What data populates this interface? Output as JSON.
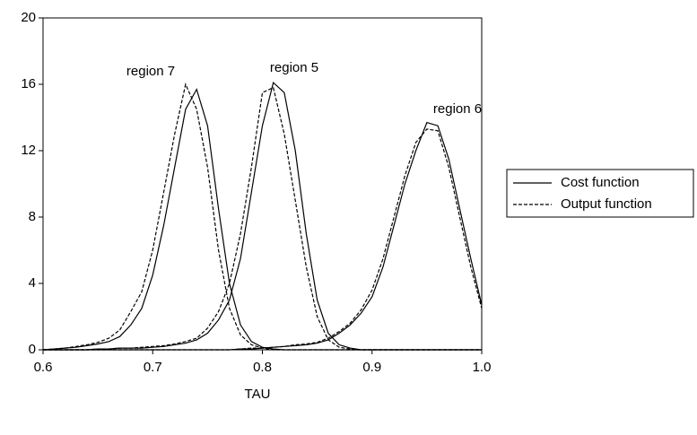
{
  "chart_data": {
    "type": "line",
    "x_label": "TAU",
    "x": [
      0.6,
      0.61,
      0.62,
      0.63,
      0.64,
      0.65,
      0.66,
      0.67,
      0.68,
      0.69,
      0.7,
      0.71,
      0.72,
      0.73,
      0.74,
      0.75,
      0.76,
      0.77,
      0.78,
      0.79,
      0.8,
      0.81,
      0.82,
      0.83,
      0.84,
      0.85,
      0.86,
      0.87,
      0.88,
      0.89,
      0.9,
      0.91,
      0.92,
      0.93,
      0.94,
      0.95,
      0.96,
      0.97,
      0.98,
      0.99,
      1.0
    ],
    "series": [
      {
        "name": "Cost function",
        "color": "#000000",
        "dashed": false,
        "curves": [
          [
            0,
            0.05,
            0.1,
            0.15,
            0.25,
            0.35,
            0.5,
            0.8,
            1.5,
            2.5,
            4.5,
            7.5,
            11,
            14.5,
            15.7,
            13.5,
            8.5,
            4,
            1.5,
            0.5,
            0.15,
            0.05,
            0,
            0,
            0,
            0,
            0,
            0,
            0,
            0,
            0,
            0,
            0,
            0,
            0,
            0,
            0,
            0,
            0,
            0,
            0
          ],
          [
            0,
            0,
            0,
            0,
            0,
            0.05,
            0.05,
            0.1,
            0.1,
            0.1,
            0.15,
            0.2,
            0.3,
            0.4,
            0.6,
            1,
            1.8,
            3,
            5.5,
            9.5,
            13.5,
            16.1,
            15.5,
            12,
            7,
            3,
            1,
            0.3,
            0.1,
            0,
            0,
            0,
            0,
            0,
            0,
            0,
            0,
            0,
            0,
            0,
            0
          ],
          [
            0,
            0,
            0,
            0,
            0,
            0,
            0,
            0,
            0,
            0,
            0,
            0,
            0,
            0,
            0,
            0,
            0,
            0,
            0.05,
            0.05,
            0.1,
            0.15,
            0.2,
            0.25,
            0.3,
            0.4,
            0.6,
            1,
            1.5,
            2.2,
            3.2,
            5,
            7.5,
            10,
            12,
            13.7,
            13.5,
            11.5,
            8.5,
            5.5,
            2.7
          ]
        ]
      },
      {
        "name": "Output function",
        "color": "#000000",
        "dashed": true,
        "curves": [
          [
            0,
            0.05,
            0.1,
            0.2,
            0.3,
            0.45,
            0.7,
            1.2,
            2.3,
            3.5,
            6,
            9.5,
            13,
            16,
            14.5,
            11,
            6,
            2.5,
            0.9,
            0.3,
            0.1,
            0,
            0,
            0,
            0,
            0,
            0,
            0,
            0,
            0,
            0,
            0,
            0,
            0,
            0,
            0,
            0,
            0,
            0,
            0,
            0
          ],
          [
            0,
            0,
            0,
            0,
            0,
            0.05,
            0.05,
            0.1,
            0.1,
            0.15,
            0.2,
            0.25,
            0.35,
            0.5,
            0.7,
            1.3,
            2.3,
            4,
            7,
            11,
            15.5,
            15.8,
            13,
            9,
            5,
            2,
            0.6,
            0.15,
            0.05,
            0,
            0,
            0,
            0,
            0,
            0,
            0,
            0,
            0,
            0,
            0,
            0
          ],
          [
            0,
            0,
            0,
            0,
            0,
            0,
            0,
            0,
            0,
            0,
            0,
            0,
            0,
            0,
            0,
            0,
            0,
            0,
            0.05,
            0.1,
            0.1,
            0.15,
            0.2,
            0.3,
            0.35,
            0.45,
            0.7,
            1.1,
            1.6,
            2.4,
            3.6,
            5.5,
            8,
            10.5,
            12.5,
            13.3,
            13.2,
            11,
            8,
            5,
            2.5
          ]
        ]
      }
    ],
    "annotations": [
      "region 7",
      "region 5",
      "region 6"
    ],
    "xlim": [
      0.6,
      1.0
    ],
    "xticks": [
      0.6,
      0.7,
      0.8,
      0.9,
      {
        "value": 1.0,
        "label": "1.0"
      }
    ],
    "ylim": [
      0,
      20
    ],
    "yticks": [
      0,
      4,
      8,
      12,
      16,
      20
    ],
    "legend": "right"
  }
}
